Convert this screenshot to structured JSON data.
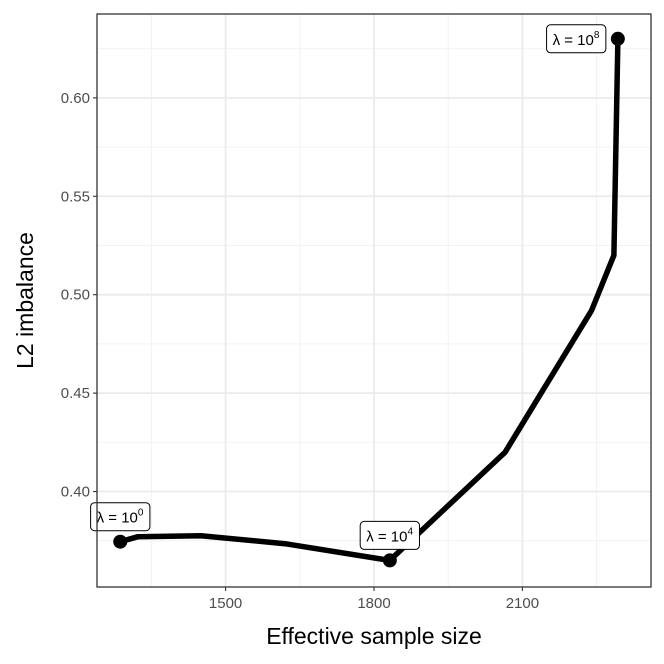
{
  "chart_data": {
    "type": "line",
    "title": "",
    "xlabel": "Effective sample size",
    "ylabel": "L2 imbalance",
    "xlim": [
      1240,
      2360
    ],
    "ylim": [
      0.3515,
      0.6426
    ],
    "x_ticks": [
      1500,
      1800,
      2100
    ],
    "x_tick_labels": [
      "1500",
      "1800",
      "2100"
    ],
    "x_minor_ticks": [
      1350,
      1650,
      1950,
      2250
    ],
    "y_ticks": [
      0.4,
      0.45,
      0.5,
      0.55,
      0.6
    ],
    "y_tick_labels": [
      "0.40",
      "0.45",
      "0.50",
      "0.55",
      "0.60"
    ],
    "y_minor_ticks": [
      0.375,
      0.425,
      0.475,
      0.525,
      0.575,
      0.625
    ],
    "grid": true,
    "legend": "none",
    "series": [
      {
        "color": "#000000",
        "points": [
          [
            1275,
            0.3745
          ],
          [
            1287,
            0.3745
          ],
          [
            1322,
            0.377
          ],
          [
            1450,
            0.3775
          ],
          [
            1620,
            0.3735
          ],
          [
            1832,
            0.365
          ],
          [
            2065,
            0.42
          ],
          [
            2240,
            0.492
          ],
          [
            2285,
            0.52
          ],
          [
            2293,
            0.63
          ]
        ]
      }
    ],
    "markers": [
      [
        1287,
        0.3745
      ],
      [
        1832,
        0.365
      ],
      [
        2293,
        0.63
      ]
    ],
    "annotations": [
      {
        "base": "λ = 10",
        "exponent": "0",
        "x": 1287,
        "y": 0.3745,
        "position": "above"
      },
      {
        "base": "λ = 10",
        "exponent": "4",
        "x": 1832,
        "y": 0.365,
        "position": "above"
      },
      {
        "base": "λ = 10",
        "exponent": "8",
        "x": 2293,
        "y": 0.63,
        "position": "left"
      }
    ]
  }
}
